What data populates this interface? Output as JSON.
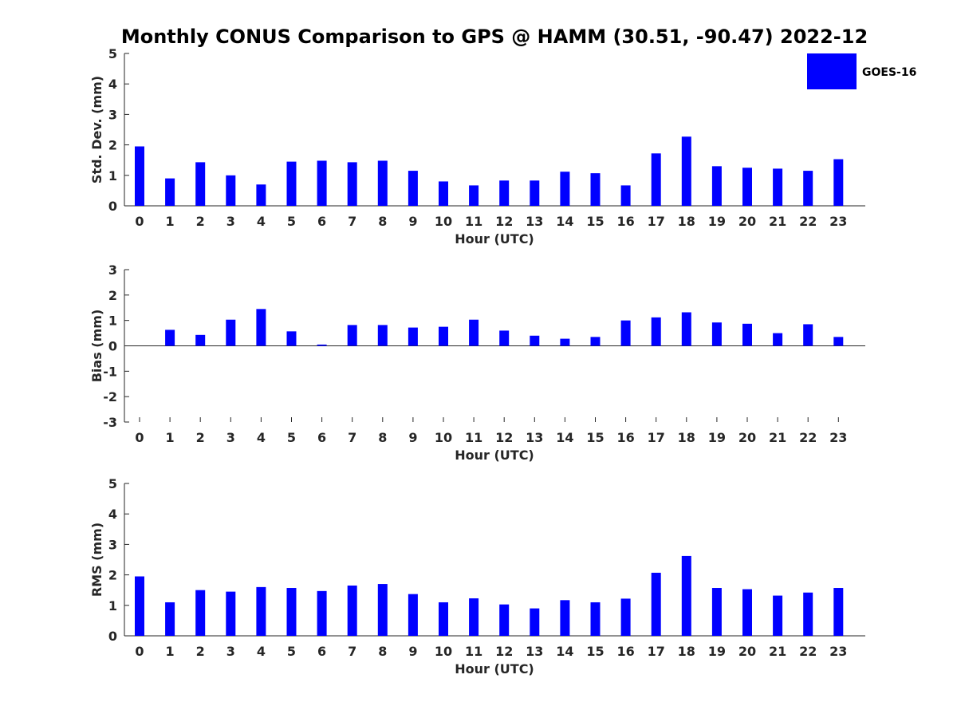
{
  "title": "Monthly CONUS Comparison to GPS @ HAMM (30.51, -90.47) 2022-12",
  "legend": {
    "label": "GOES-16",
    "color": "#0000FF"
  },
  "chart_data": [
    {
      "type": "bar",
      "name": "std-dev",
      "ylabel": "Std. Dev. (mm)",
      "xlabel": "Hour (UTC)",
      "ylim": [
        0,
        5
      ],
      "yticks": [
        0,
        1,
        2,
        3,
        4,
        5
      ],
      "categories": [
        "0",
        "1",
        "2",
        "3",
        "4",
        "5",
        "6",
        "7",
        "8",
        "9",
        "10",
        "11",
        "12",
        "13",
        "14",
        "15",
        "16",
        "17",
        "18",
        "19",
        "20",
        "21",
        "22",
        "23"
      ],
      "series": [
        {
          "values": [
            1.95,
            0.9,
            1.43,
            1.0,
            0.7,
            1.45,
            1.48,
            1.43,
            1.48,
            1.15,
            0.8,
            0.67,
            0.83,
            0.83,
            1.12,
            1.07,
            0.67,
            1.72,
            2.27,
            1.3,
            1.25,
            1.22,
            1.15,
            1.53
          ],
          "color": "#0000FF"
        }
      ],
      "grid": false,
      "legend_position": "top-right"
    },
    {
      "type": "bar",
      "name": "bias",
      "ylabel": "Bias (mm)",
      "xlabel": "Hour (UTC)",
      "ylim": [
        -3,
        3
      ],
      "yticks": [
        -3,
        -2,
        -1,
        0,
        1,
        2,
        3
      ],
      "categories": [
        "0",
        "1",
        "2",
        "3",
        "4",
        "5",
        "6",
        "7",
        "8",
        "9",
        "10",
        "11",
        "12",
        "13",
        "14",
        "15",
        "16",
        "17",
        "18",
        "19",
        "20",
        "21",
        "22",
        "23"
      ],
      "series": [
        {
          "values": [
            0.0,
            0.63,
            0.43,
            1.03,
            1.45,
            0.57,
            0.05,
            0.82,
            0.82,
            0.72,
            0.75,
            1.03,
            0.6,
            0.4,
            0.28,
            0.35,
            1.0,
            1.12,
            1.32,
            0.92,
            0.87,
            0.5,
            0.85,
            0.35
          ],
          "color": "#0000FF"
        }
      ],
      "grid": false
    },
    {
      "type": "bar",
      "name": "rms",
      "ylabel": "RMS (mm)",
      "xlabel": "Hour (UTC)",
      "ylim": [
        0,
        5
      ],
      "yticks": [
        0,
        1,
        2,
        3,
        4,
        5
      ],
      "categories": [
        "0",
        "1",
        "2",
        "3",
        "4",
        "5",
        "6",
        "7",
        "8",
        "9",
        "10",
        "11",
        "12",
        "13",
        "14",
        "15",
        "16",
        "17",
        "18",
        "19",
        "20",
        "21",
        "22",
        "23"
      ],
      "series": [
        {
          "values": [
            1.95,
            1.1,
            1.5,
            1.45,
            1.6,
            1.57,
            1.47,
            1.65,
            1.7,
            1.37,
            1.1,
            1.23,
            1.03,
            0.9,
            1.17,
            1.1,
            1.22,
            2.07,
            2.62,
            1.57,
            1.53,
            1.32,
            1.42,
            1.57
          ],
          "color": "#0000FF"
        }
      ],
      "grid": false
    }
  ]
}
